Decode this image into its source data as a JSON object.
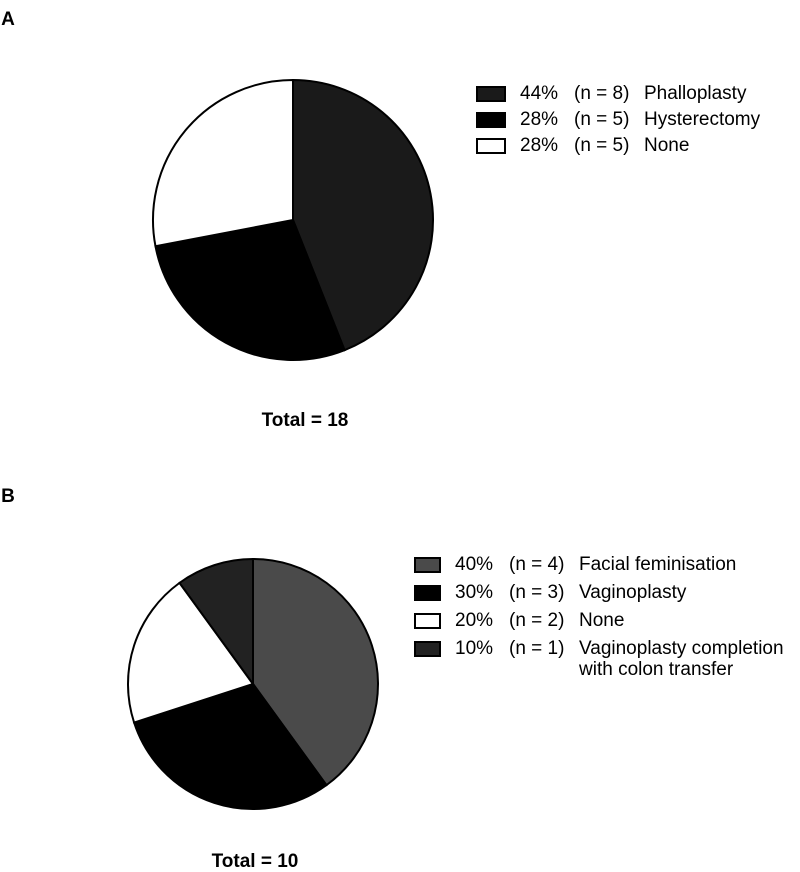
{
  "chart_data": [
    {
      "type": "pie",
      "panel_label": "A",
      "total_label": "Total = 18",
      "categories": [
        "Phalloplasty",
        "Hysterectomy",
        "None"
      ],
      "values": [
        44,
        28,
        28
      ],
      "value_labels": [
        "44%",
        "28%",
        "28%"
      ],
      "counts": [
        8,
        5,
        5
      ],
      "count_labels": [
        "(n = 8)",
        "(n = 5)",
        "(n = 5)"
      ],
      "colors": [
        "#1a1a1a",
        "#000000",
        "#ffffff"
      ]
    },
    {
      "type": "pie",
      "panel_label": "B",
      "total_label": "Total = 10",
      "categories": [
        "Facial feminisation",
        "Vaginoplasty",
        "None",
        "Vaginoplasty completion\nwith colon transfer"
      ],
      "values": [
        40,
        30,
        20,
        10
      ],
      "value_labels": [
        "40%",
        "30%",
        "20%",
        "10%"
      ],
      "counts": [
        4,
        3,
        2,
        1
      ],
      "count_labels": [
        "(n = 4)",
        "(n = 3)",
        "(n = 2)",
        "(n = 1)"
      ],
      "colors": [
        "#4a4a4a",
        "#000000",
        "#ffffff",
        "#222222"
      ]
    }
  ]
}
